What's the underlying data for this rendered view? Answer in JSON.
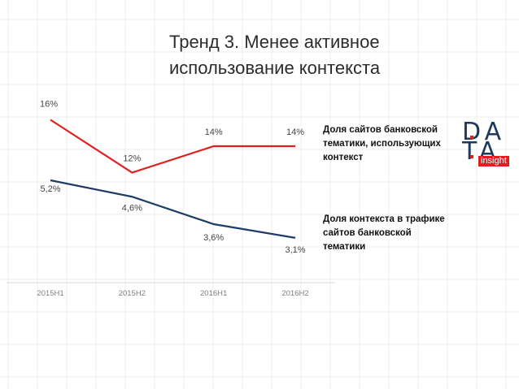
{
  "title": {
    "line1": "Тренд 3. Менее активное",
    "line2": "использование контекста"
  },
  "chart_data": {
    "type": "line",
    "categories": [
      "2015H1",
      "2015H2",
      "2016H1",
      "2016H2"
    ],
    "series": [
      {
        "name": "Доля сайтов банковской тематики, использующих контекст",
        "values": [
          16,
          12,
          14,
          14
        ],
        "labels": [
          "16%",
          "12%",
          "14%",
          "14%"
        ],
        "color": "#e02020"
      },
      {
        "name": "Доля контекста в трафике сайтов банковской тематики",
        "values": [
          5.2,
          4.6,
          3.6,
          3.1
        ],
        "labels": [
          "5,2%",
          "4,6%",
          "3,6%",
          "3,1%"
        ],
        "color": "#1f3c66"
      }
    ],
    "grid": true,
    "legend": "right"
  },
  "legend": {
    "red": [
      "Доля сайтов банковской",
      "тематики, использующих",
      "контекст"
    ],
    "blue": [
      "Доля контекста в трафике",
      "сайтов банковской",
      "тематики"
    ]
  },
  "logo": {
    "line1": "DA",
    "line2": "TA",
    "sub": "insight",
    "accent": "#e01e1e",
    "color": "#1d3a5c"
  }
}
